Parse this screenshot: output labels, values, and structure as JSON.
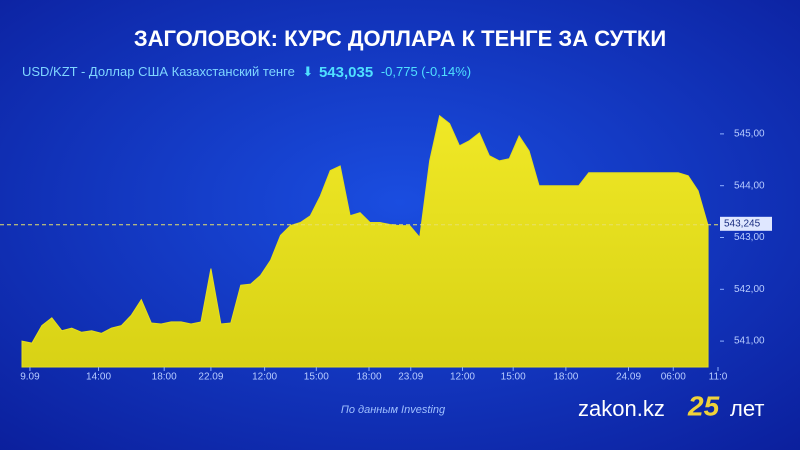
{
  "chart_data": {
    "type": "area",
    "title": "ЗАГОЛОВОК: КУРС ДОЛЛАРА К ТЕНГЕ ЗА СУТКИ",
    "subtitle": "USD/KZT - Доллар США Казахстанский тенге",
    "quote_arrow": "⬇",
    "quote": "543,035",
    "quote_change": "-0,775 (-0,14%)",
    "source": "По данным Investing",
    "brand": "zakon.kz",
    "brand_number": "25",
    "brand_suffix": "лет",
    "color": "#e6df1c",
    "values": [
      541.0,
      540.96,
      541.3,
      541.45,
      541.2,
      541.25,
      541.17,
      541.2,
      541.15,
      541.25,
      541.3,
      541.5,
      541.8,
      541.35,
      541.33,
      541.37,
      541.37,
      541.33,
      541.37,
      542.4,
      541.33,
      541.35,
      542.08,
      542.1,
      542.27,
      542.56,
      543.04,
      543.23,
      543.29,
      543.42,
      543.8,
      544.29,
      544.38,
      543.42,
      543.48,
      543.29,
      543.29,
      543.25,
      543.23,
      543.23,
      543.0,
      544.48,
      545.35,
      545.2,
      544.77,
      544.87,
      545.02,
      544.58,
      544.48,
      544.52,
      544.96,
      544.67,
      544.0,
      544.0,
      544.0,
      544.0,
      544.0,
      544.25,
      544.25,
      544.25,
      544.25,
      544.25,
      544.25,
      544.25,
      544.25,
      544.25,
      544.25,
      544.19,
      543.9,
      543.23
    ],
    "last_value": {
      "value": 543.245,
      "label": "543,245"
    },
    "xlim": [
      0,
      70
    ],
    "xticks": [
      {
        "value": 0.8,
        "label": "9.09"
      },
      {
        "value": 7.7,
        "label": "14:00"
      },
      {
        "value": 14.3,
        "label": "18:00"
      },
      {
        "value": 19,
        "label": "22.09"
      },
      {
        "value": 24.4,
        "label": "12:00"
      },
      {
        "value": 29.6,
        "label": "15:00"
      },
      {
        "value": 34.9,
        "label": "18:00"
      },
      {
        "value": 39.1,
        "label": "23.09"
      },
      {
        "value": 44.3,
        "label": "12:00"
      },
      {
        "value": 49.4,
        "label": "15:00"
      },
      {
        "value": 54.7,
        "label": "18:00"
      },
      {
        "value": 61,
        "label": "24.09"
      },
      {
        "value": 65.5,
        "label": "06:00"
      },
      {
        "value": 70,
        "label": "11:0"
      }
    ],
    "ylim": [
      540.5,
      545.5
    ],
    "yticks": [
      {
        "value": 541,
        "label": "541,00"
      },
      {
        "value": 542,
        "label": "542,00"
      },
      {
        "value": 543,
        "label": "543,00"
      },
      {
        "value": 544,
        "label": "544,00"
      },
      {
        "value": 545,
        "label": "545,00"
      }
    ]
  }
}
